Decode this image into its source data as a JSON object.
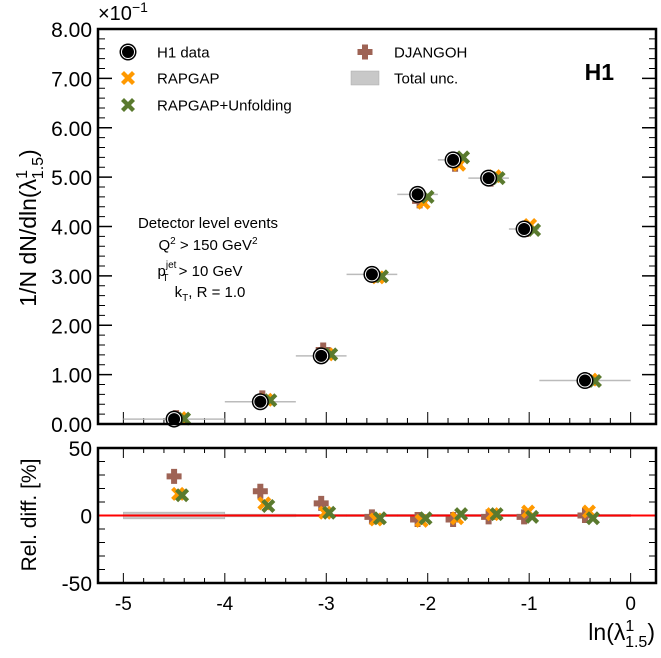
{
  "chart_data": [
    {
      "type": "scatter",
      "title": "",
      "logo": "H1",
      "ylabel_main": "1/N dN/dln(λ",
      "ylabel_sup": "1",
      "ylabel_sub": "1.5",
      "ylabel_close": ")",
      "y_multiplier": "×10",
      "y_multiplier_exp": "−1",
      "ylim": [
        0,
        8
      ],
      "xlim": [
        -5.25,
        0.25
      ],
      "yticks": [
        "0.00",
        "1.00",
        "2.00",
        "3.00",
        "4.00",
        "5.00",
        "6.00",
        "7.00",
        "8.00"
      ],
      "bin_edges": [
        -5,
        -4,
        -3.3,
        -2.8,
        -2.3,
        -1.9,
        -1.6,
        -1.2,
        -0.9,
        0
      ],
      "x": [
        -4.5,
        -3.65,
        -3.05,
        -2.55,
        -2.1,
        -1.75,
        -1.4,
        -1.05,
        -0.45
      ],
      "series": [
        {
          "name": "H1 data",
          "values": [
            0.1,
            0.45,
            1.38,
            3.03,
            4.65,
            5.35,
            4.98,
            3.95,
            0.88
          ],
          "color": "#000000",
          "marker": "circle"
        },
        {
          "name": "RAPGAP",
          "values": [
            0.12,
            0.49,
            1.41,
            2.97,
            4.48,
            5.25,
            5.02,
            4.03,
            0.9
          ],
          "color": "#ff9900",
          "marker": "x"
        },
        {
          "name": "RAPGAP+Unfolding",
          "values": [
            0.11,
            0.48,
            1.41,
            2.99,
            4.6,
            5.4,
            4.98,
            3.93,
            0.87
          ],
          "color": "#5a7a2e",
          "marker": "x"
        },
        {
          "name": "DJANGOH",
          "values": [
            0.13,
            0.53,
            1.5,
            3.01,
            4.52,
            5.26,
            4.96,
            3.94,
            0.88
          ],
          "color": "#9e6355",
          "marker": "plus"
        }
      ],
      "legend": [
        {
          "label": "H1 data",
          "marker": "circle"
        },
        {
          "label": "RAPGAP",
          "marker": "x-orange"
        },
        {
          "label": "RAPGAP+Unfolding",
          "marker": "x-green"
        },
        {
          "label": "DJANGOH",
          "marker": "plus"
        },
        {
          "label": "Total unc.",
          "marker": "band"
        }
      ],
      "legend_position": "top",
      "annotation": {
        "line1": "Detector level events",
        "line2a": "Q",
        "line2sup": "2",
        "line2b": " > 150 GeV",
        "line2sup2": "2",
        "line3a": "p",
        "line3sup": "jet",
        "line3sub": "T",
        "line3b": " > 10 GeV",
        "line4a": "k",
        "line4sub": "T",
        "line4b": ", R = 1.0"
      }
    },
    {
      "type": "scatter",
      "ylabel": "Rel. diff. [%]",
      "xlabel_main": "ln(λ",
      "xlabel_sup": "1",
      "xlabel_sub": "1.5",
      "xlabel_close": ")",
      "ylim": [
        -50,
        50
      ],
      "yticks": [
        "-50",
        "0",
        "50"
      ],
      "xticks": [
        "-5",
        "-4",
        "-3",
        "-2",
        "-1",
        "0"
      ],
      "reference_line": 0,
      "reference_color": "#ff0000",
      "total_unc": [
        2.5,
        1.0,
        0.8,
        0.8,
        0.8,
        0.8,
        0.8,
        0.8,
        0.8
      ],
      "series": [
        {
          "name": "RAPGAP",
          "values": [
            16,
            9,
            2,
            -3,
            -4,
            -2,
            1,
            3,
            3
          ],
          "color": "#ff9900"
        },
        {
          "name": "RAPGAP+Unfolding",
          "values": [
            15,
            7,
            2,
            -2,
            -2,
            1,
            1,
            -1,
            -2
          ],
          "color": "#5a7a2e"
        },
        {
          "name": "DJANGOH",
          "values": [
            29,
            18,
            9,
            -1,
            -3,
            -3,
            -1,
            -1,
            0
          ],
          "color": "#9e6355"
        }
      ]
    }
  ]
}
